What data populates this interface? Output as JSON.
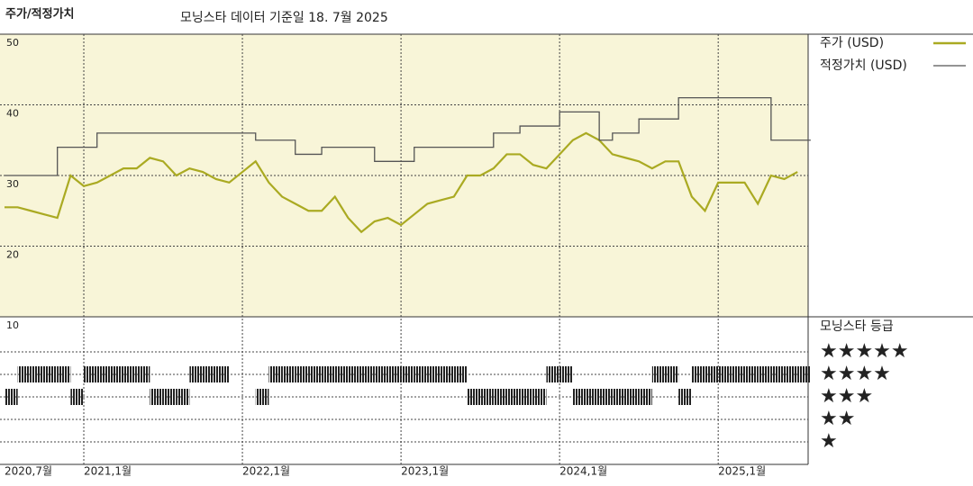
{
  "chart_data": {
    "type": "line",
    "title": "주가/적정가치",
    "subtitle": "모닝스타 데이터 기준일 18. 7월 2025",
    "x": [
      "2020-07",
      "2020-08",
      "2020-09",
      "2020-10",
      "2020-11",
      "2020-12",
      "2021-01",
      "2021-02",
      "2021-03",
      "2021-04",
      "2021-05",
      "2021-06",
      "2021-07",
      "2021-08",
      "2021-09",
      "2021-10",
      "2021-11",
      "2021-12",
      "2022-01",
      "2022-02",
      "2022-03",
      "2022-04",
      "2022-05",
      "2022-06",
      "2022-07",
      "2022-08",
      "2022-09",
      "2022-10",
      "2022-11",
      "2022-12",
      "2023-01",
      "2023-02",
      "2023-03",
      "2023-04",
      "2023-05",
      "2023-06",
      "2023-07",
      "2023-08",
      "2023-09",
      "2023-10",
      "2023-11",
      "2023-12",
      "2024-01",
      "2024-02",
      "2024-03",
      "2024-04",
      "2024-05",
      "2024-06",
      "2024-07",
      "2024-08",
      "2024-09",
      "2024-10",
      "2024-11",
      "2024-12",
      "2025-01",
      "2025-02",
      "2025-03",
      "2025-04",
      "2025-05",
      "2025-06",
      "2025-07"
    ],
    "series": [
      {
        "name": "주가 (USD)",
        "color": "#aaaa22",
        "step": false,
        "values": [
          25.5,
          25.5,
          25,
          24.5,
          24,
          30,
          28.5,
          29,
          30,
          31,
          31,
          32.5,
          32,
          30,
          31,
          30.5,
          29.5,
          29,
          30.5,
          32,
          29,
          27,
          26,
          25,
          25,
          27,
          24,
          22,
          23.5,
          24,
          23,
          24.5,
          26,
          26.5,
          27,
          30,
          30,
          31,
          33,
          33,
          31.5,
          31,
          33,
          35,
          36,
          35,
          33,
          32.5,
          32,
          31,
          32,
          32,
          27,
          25,
          29,
          29,
          29,
          26,
          30,
          29.5,
          30.5
        ]
      },
      {
        "name": "적정가치 (USD)",
        "color": "#555555",
        "step": true,
        "values": [
          30,
          30,
          30,
          30,
          34,
          34,
          34,
          36,
          36,
          36,
          36,
          36,
          36,
          36,
          36,
          36,
          36,
          36,
          36,
          35,
          35,
          35,
          33,
          33,
          34,
          34,
          34,
          34,
          32,
          32,
          32,
          34,
          34,
          34,
          34,
          34,
          34,
          36,
          36,
          37,
          37,
          37,
          39,
          39,
          39,
          35,
          36,
          36,
          38,
          38,
          38,
          41,
          41,
          41,
          41,
          41,
          41,
          41,
          35,
          35,
          35
        ]
      }
    ],
    "ylim": [
      10,
      50
    ],
    "yticks": [
      10,
      20,
      30,
      40,
      50
    ],
    "xticks": [
      {
        "value": "2020-07",
        "label": "2020,7월"
      },
      {
        "value": "2021-01",
        "label": "2021,1월"
      },
      {
        "value": "2022-01",
        "label": "2022,1월"
      },
      {
        "value": "2023-01",
        "label": "2023,1월"
      },
      {
        "value": "2024-01",
        "label": "2024,1월"
      },
      {
        "value": "2025-01",
        "label": "2025,1월"
      }
    ],
    "grid": true,
    "rating_title": "모닝스타 등급",
    "rating_legend": [
      "★★★★★",
      "★★★★",
      "★★★",
      "★★",
      "★"
    ],
    "ratings": [
      3,
      4,
      4,
      4,
      4,
      3,
      4,
      4,
      4,
      4,
      4,
      3,
      3,
      3,
      4,
      4,
      4,
      null,
      null,
      3,
      4,
      4,
      4,
      4,
      4,
      4,
      4,
      4,
      4,
      4,
      4,
      4,
      4,
      4,
      4,
      3,
      3,
      3,
      3,
      3,
      3,
      4,
      4,
      3,
      3,
      3,
      3,
      3,
      3,
      4,
      4,
      3,
      4,
      4,
      4,
      4,
      4,
      4,
      4,
      4,
      4
    ]
  }
}
